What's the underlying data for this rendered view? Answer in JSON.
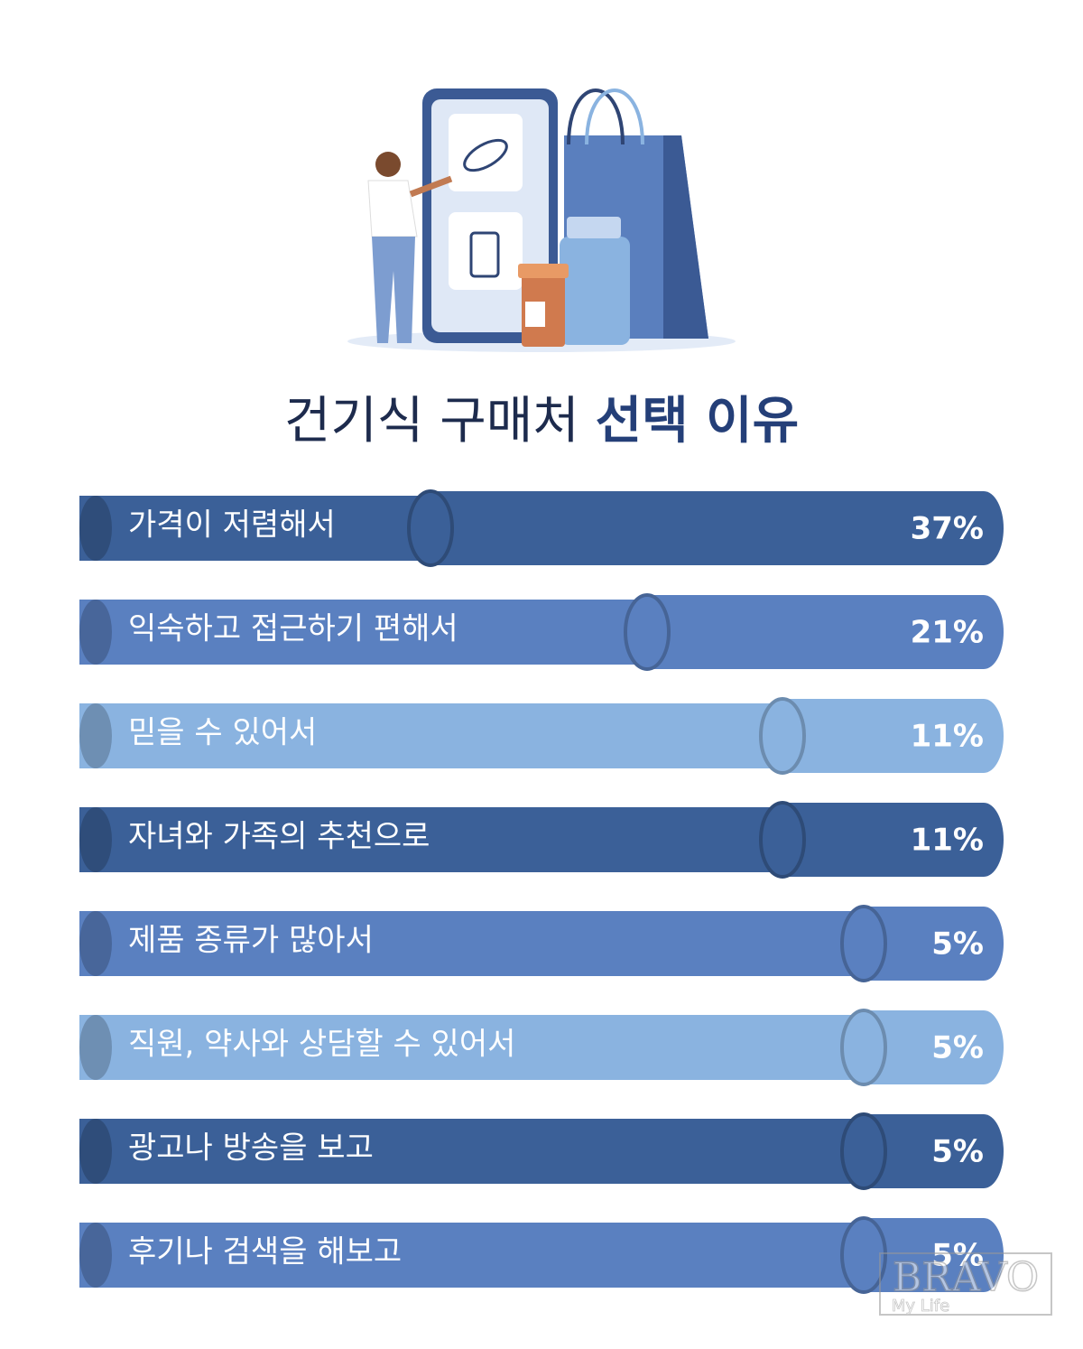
{
  "chart_data": {
    "type": "bar",
    "title": "건기식 구매처",
    "title_emphasis": "선택 이유",
    "categories": [
      "가격이 저렴해서",
      "익숙하고 접근하기 편해서",
      "믿을 수 있어서",
      "자녀와 가족의 추천으로",
      "제품 종류가 많아서",
      "직원, 약사와 상담할 수 있어서",
      "광고나 방송을 보고",
      "후기나 검색을 해보고"
    ],
    "values": [
      37,
      21,
      11,
      11,
      5,
      5,
      5,
      5
    ],
    "value_labels": [
      "37%",
      "21%",
      "11%",
      "11%",
      "5%",
      "5%",
      "5%",
      "5%"
    ],
    "colors": [
      "#3b6098",
      "#5a80c0",
      "#8ab3e0",
      "#3b6098",
      "#5a80c0",
      "#8ab3e0",
      "#3b6098",
      "#5a80c0"
    ],
    "watermark": {
      "brand": "BRAVO",
      "tagline": "My Life"
    }
  }
}
